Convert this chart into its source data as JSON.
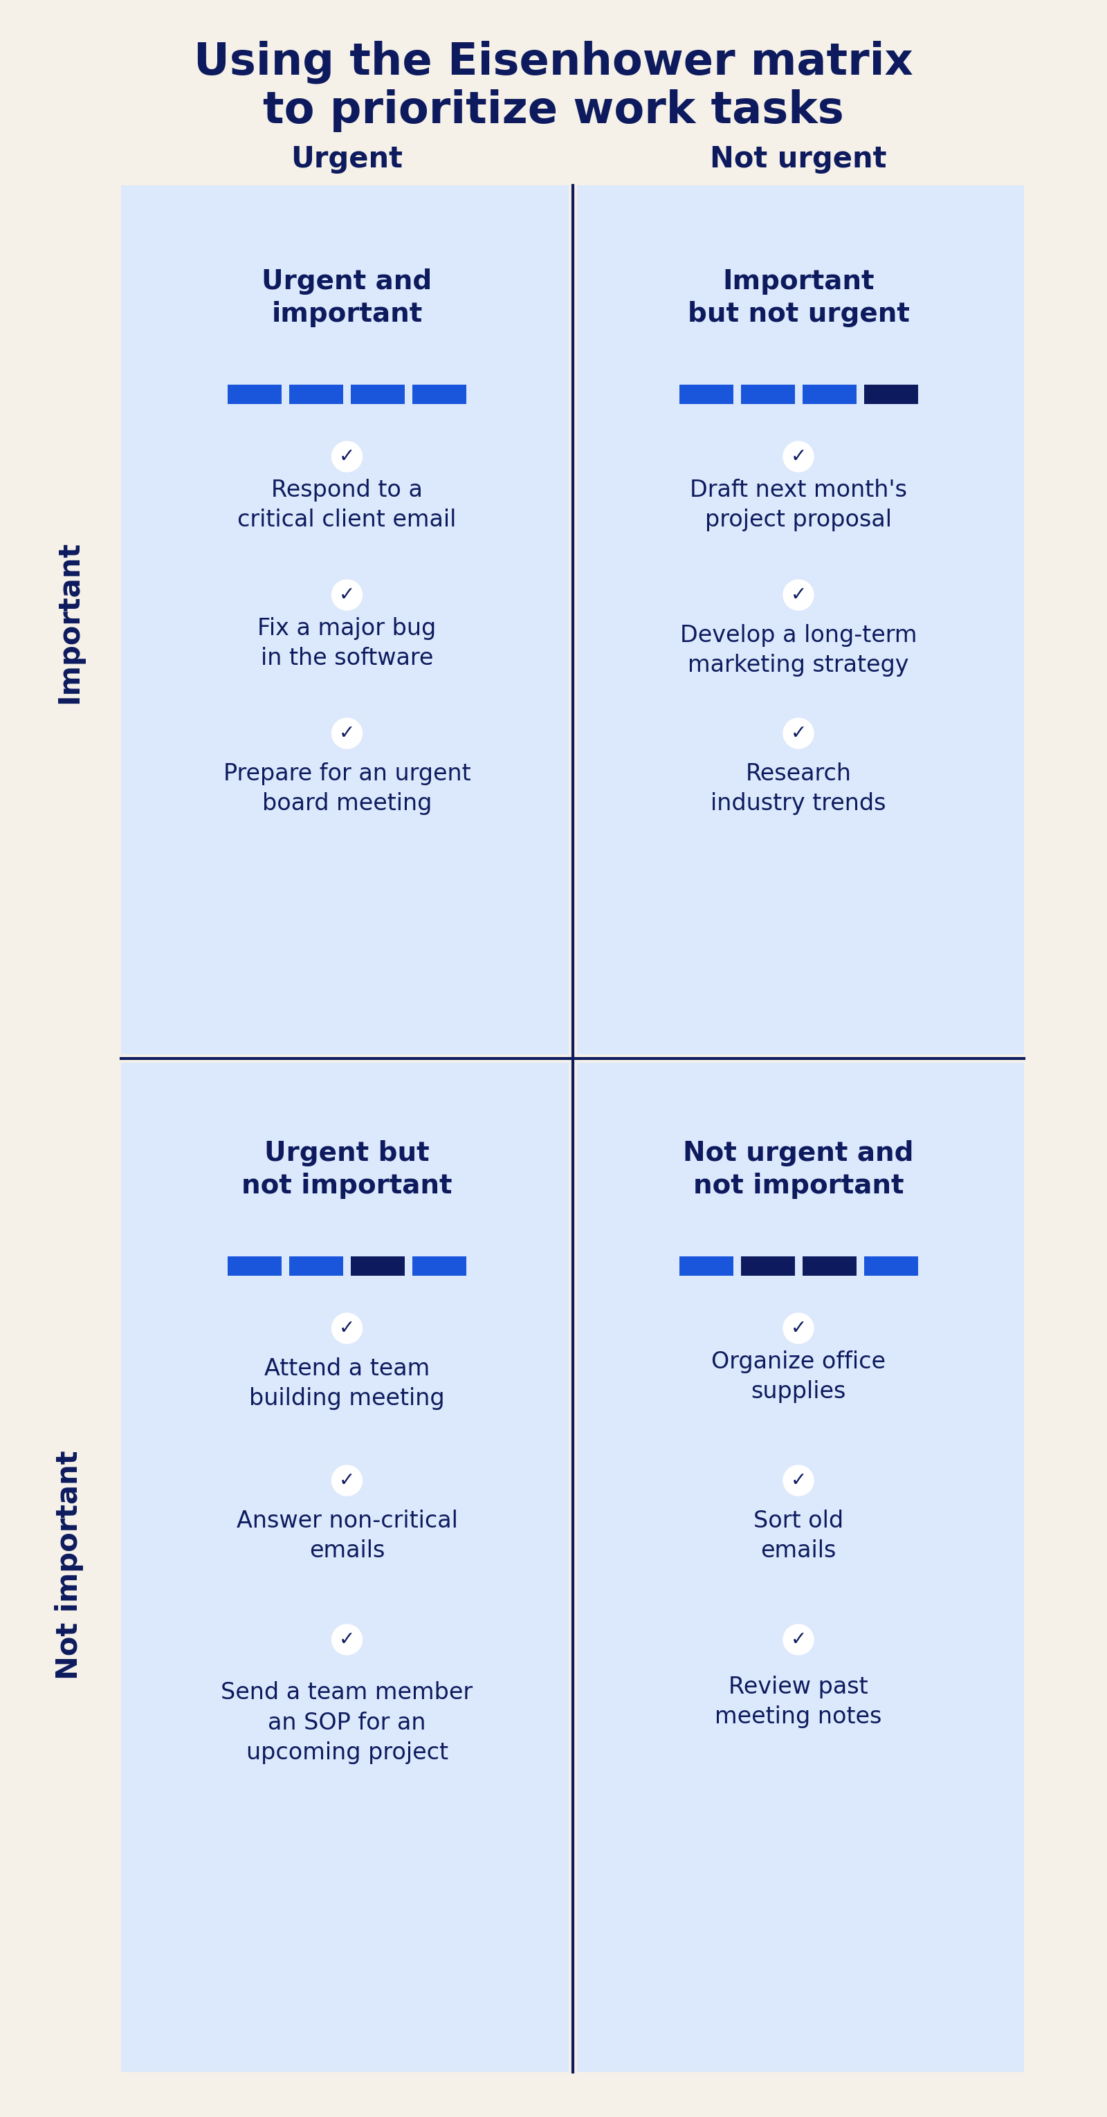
{
  "title_line1": "Using the Eisenhower matrix",
  "title_line2": "to prioritize work tasks",
  "title_color": "#0d1b5e",
  "background_color": "#f5f0e8",
  "cell_bg_color": "#dce8fb",
  "divider_color": "#0d1b5e",
  "text_color": "#0d1b5e",
  "check_color": "#0d1b5e",
  "col_headers": [
    "Urgent",
    "Not urgent"
  ],
  "row_headers": [
    "Important",
    "Not important"
  ],
  "quadrant_titles": [
    [
      "Urgent and\nimportant",
      "Important\nbut not urgent"
    ],
    [
      "Urgent but\nnot important",
      "Not urgent and\nnot important"
    ]
  ],
  "quadrant_items": [
    [
      [
        "Respond to a\ncritical client email",
        "Fix a major bug\nin the software",
        "Prepare for an urgent\nboard meeting"
      ],
      [
        "Draft next month's\nproject proposal",
        "Develop a long-term\nmarketing strategy",
        "Research\nindustry trends"
      ]
    ],
    [
      [
        "Attend a team\nbuilding meeting",
        "Answer non-critical\nemails",
        "Send a team member\nan SOP for an\nupcoming project"
      ],
      [
        "Organize office\nsupplies",
        "Sort old\nemails",
        "Review past\nmeeting notes"
      ]
    ]
  ],
  "bar_colors_q1": [
    "#1a56db",
    "#1a56db",
    "#1a56db",
    "#1a56db"
  ],
  "bar_colors_q2": [
    "#1a56db",
    "#1a56db",
    "#1a56db",
    "#0d1b5e"
  ],
  "bar_colors_q3": [
    "#1a56db",
    "#1a56db",
    "#0d1b5e",
    "#1a56db"
  ],
  "bar_colors_q4": [
    "#1a56db",
    "#0d1b5e",
    "#0d1b5e",
    "#1a56db"
  ]
}
